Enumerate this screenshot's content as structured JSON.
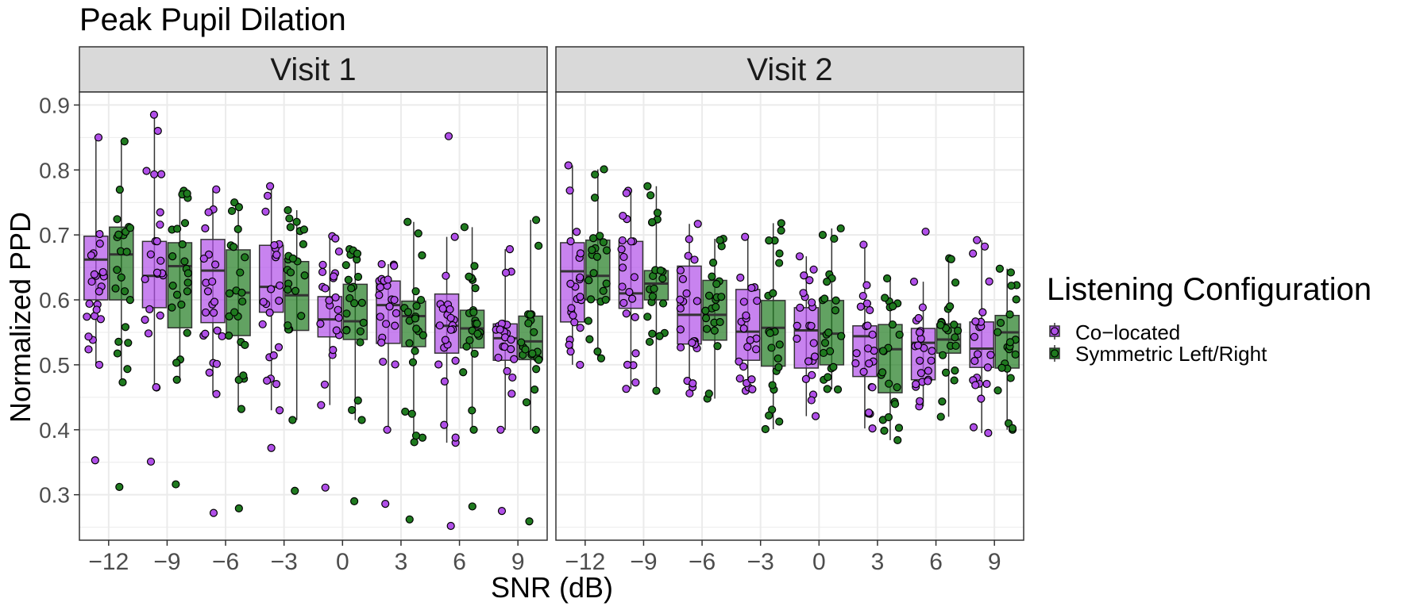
{
  "chart_data": {
    "type": "box",
    "title": "Peak Pupil Dilation",
    "xlabel": "SNR (dB)",
    "ylabel": "Normalized PPD",
    "ylim": [
      0.23,
      0.92
    ],
    "yticks": [
      0.3,
      0.4,
      0.5,
      0.6,
      0.7,
      0.8,
      0.9
    ],
    "ytick_labels": [
      "0.3",
      "0.4",
      "0.5",
      "0.6",
      "0.7",
      "0.8",
      "0.9"
    ],
    "categories": [
      "−12",
      "−9",
      "−6",
      "−3",
      "0",
      "3",
      "6",
      "9"
    ],
    "grid": true,
    "legend": {
      "title": "Listening Configuration",
      "placement": "right",
      "entries": [
        "Co−located",
        "Symmetric Left/Right"
      ]
    },
    "colors": {
      "Co−located": "#b04fe8",
      "Symmetric Left/Right": "#1f7a1f",
      "strip_bg": "#d9d9d9",
      "grid": "#ebebeb"
    },
    "panels": [
      {
        "name": "Visit 1",
        "series": [
          {
            "name": "Co−located",
            "boxes": [
              {
                "q1": 0.6,
                "median": 0.662,
                "q3": 0.698,
                "lower": 0.5,
                "upper": 0.85
              },
              {
                "q1": 0.588,
                "median": 0.637,
                "q3": 0.69,
                "lower": 0.465,
                "upper": 0.885
              },
              {
                "q1": 0.565,
                "median": 0.645,
                "q3": 0.693,
                "lower": 0.455,
                "upper": 0.77
              },
              {
                "q1": 0.581,
                "median": 0.62,
                "q3": 0.684,
                "lower": 0.43,
                "upper": 0.775
              },
              {
                "q1": 0.543,
                "median": 0.57,
                "q3": 0.605,
                "lower": 0.438,
                "upper": 0.698
              },
              {
                "q1": 0.533,
                "median": 0.592,
                "q3": 0.629,
                "lower": 0.4,
                "upper": 0.655
              },
              {
                "q1": 0.518,
                "median": 0.56,
                "q3": 0.609,
                "lower": 0.38,
                "upper": 0.697
              },
              {
                "q1": 0.507,
                "median": 0.541,
                "q3": 0.563,
                "lower": 0.4,
                "upper": 0.678
              }
            ],
            "outliers": [
              [
                0.353
              ],
              [
                0.351
              ],
              [
                0.272
              ],
              [
                0.372
              ],
              [
                0.311
              ],
              [
                0.286
              ],
              [
                0.852,
                0.252
              ],
              [
                0.275
              ]
            ]
          },
          {
            "name": "Symmetric Left/Right",
            "boxes": [
              {
                "q1": 0.6,
                "median": 0.67,
                "q3": 0.712,
                "lower": 0.473,
                "upper": 0.844
              },
              {
                "q1": 0.557,
                "median": 0.652,
                "q3": 0.688,
                "lower": 0.477,
                "upper": 0.768
              },
              {
                "q1": 0.545,
                "median": 0.611,
                "q3": 0.677,
                "lower": 0.432,
                "upper": 0.75
              },
              {
                "q1": 0.553,
                "median": 0.607,
                "q3": 0.659,
                "lower": 0.415,
                "upper": 0.738
              },
              {
                "q1": 0.539,
                "median": 0.567,
                "q3": 0.624,
                "lower": 0.415,
                "upper": 0.678
              },
              {
                "q1": 0.528,
                "median": 0.575,
                "q3": 0.598,
                "lower": 0.381,
                "upper": 0.72
              },
              {
                "q1": 0.526,
                "median": 0.556,
                "q3": 0.584,
                "lower": 0.4,
                "upper": 0.712
              },
              {
                "q1": 0.508,
                "median": 0.536,
                "q3": 0.575,
                "lower": 0.4,
                "upper": 0.723
              }
            ],
            "outliers": [
              [
                0.312
              ],
              [
                0.316
              ],
              [
                0.279
              ],
              [
                0.306
              ],
              [
                0.29
              ],
              [
                0.262
              ],
              [
                0.282
              ],
              [
                0.259
              ]
            ]
          }
        ]
      },
      {
        "name": "Visit 2",
        "series": [
          {
            "name": "Co−located",
            "boxes": [
              {
                "q1": 0.566,
                "median": 0.644,
                "q3": 0.688,
                "lower": 0.5,
                "upper": 0.807
              },
              {
                "q1": 0.587,
                "median": 0.61,
                "q3": 0.69,
                "lower": 0.463,
                "upper": 0.768
              },
              {
                "q1": 0.532,
                "median": 0.577,
                "q3": 0.652,
                "lower": 0.456,
                "upper": 0.717
              },
              {
                "q1": 0.507,
                "median": 0.551,
                "q3": 0.616,
                "lower": 0.46,
                "upper": 0.697
              },
              {
                "q1": 0.495,
                "median": 0.553,
                "q3": 0.588,
                "lower": 0.421,
                "upper": 0.667
              },
              {
                "q1": 0.482,
                "median": 0.544,
                "q3": 0.56,
                "lower": 0.402,
                "upper": 0.685
              },
              {
                "q1": 0.477,
                "median": 0.534,
                "q3": 0.556,
                "lower": 0.436,
                "upper": 0.628
              },
              {
                "q1": 0.496,
                "median": 0.525,
                "q3": 0.566,
                "lower": 0.395,
                "upper": 0.692
              }
            ],
            "outliers": [
              [],
              [],
              [],
              [],
              [],
              [],
              [
                0.705
              ],
              []
            ]
          },
          {
            "name": "Symmetric Left/Right",
            "boxes": [
              {
                "q1": 0.6,
                "median": 0.637,
                "q3": 0.692,
                "lower": 0.51,
                "upper": 0.801
              },
              {
                "q1": 0.6,
                "median": 0.625,
                "q3": 0.645,
                "lower": 0.46,
                "upper": 0.775
              },
              {
                "q1": 0.538,
                "median": 0.577,
                "q3": 0.63,
                "lower": 0.448,
                "upper": 0.694
              },
              {
                "q1": 0.498,
                "median": 0.557,
                "q3": 0.599,
                "lower": 0.401,
                "upper": 0.718
              },
              {
                "q1": 0.5,
                "median": 0.548,
                "q3": 0.599,
                "lower": 0.462,
                "upper": 0.71
              },
              {
                "q1": 0.457,
                "median": 0.524,
                "q3": 0.562,
                "lower": 0.384,
                "upper": 0.633
              },
              {
                "q1": 0.518,
                "median": 0.539,
                "q3": 0.563,
                "lower": 0.42,
                "upper": 0.664
              },
              {
                "q1": 0.495,
                "median": 0.55,
                "q3": 0.576,
                "lower": 0.4,
                "upper": 0.648
              }
            ],
            "outliers": [
              [],
              [],
              [],
              [],
              [],
              [],
              [],
              []
            ]
          }
        ]
      }
    ]
  }
}
